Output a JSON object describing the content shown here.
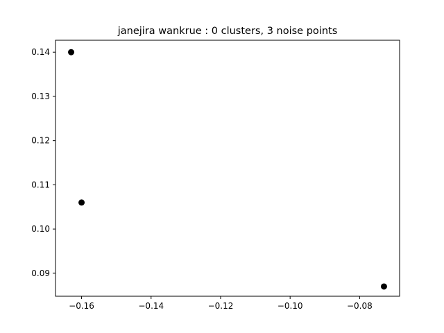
{
  "chart_data": {
    "type": "scatter",
    "title": "janejira wankrue : 0 clusters, 3 noise points",
    "xlabel": "",
    "ylabel": "",
    "xlim": [
      -0.1675,
      -0.0685
    ],
    "ylim": [
      0.0848,
      0.1427
    ],
    "xticks": [
      -0.16,
      -0.14,
      -0.12,
      -0.1,
      -0.08
    ],
    "xtick_labels": [
      "−0.16",
      "−0.14",
      "−0.12",
      "−0.10",
      "−0.08"
    ],
    "yticks": [
      0.09,
      0.1,
      0.11,
      0.12,
      0.13,
      0.14
    ],
    "ytick_labels": [
      "0.09",
      "0.10",
      "0.11",
      "0.12",
      "0.13",
      "0.14"
    ],
    "grid": false,
    "legend": "none",
    "point_color": "#000000",
    "series": [
      {
        "points": [
          {
            "x": -0.163,
            "y": 0.14
          },
          {
            "x": -0.16,
            "y": 0.106
          },
          {
            "x": -0.073,
            "y": 0.087
          }
        ]
      }
    ]
  }
}
